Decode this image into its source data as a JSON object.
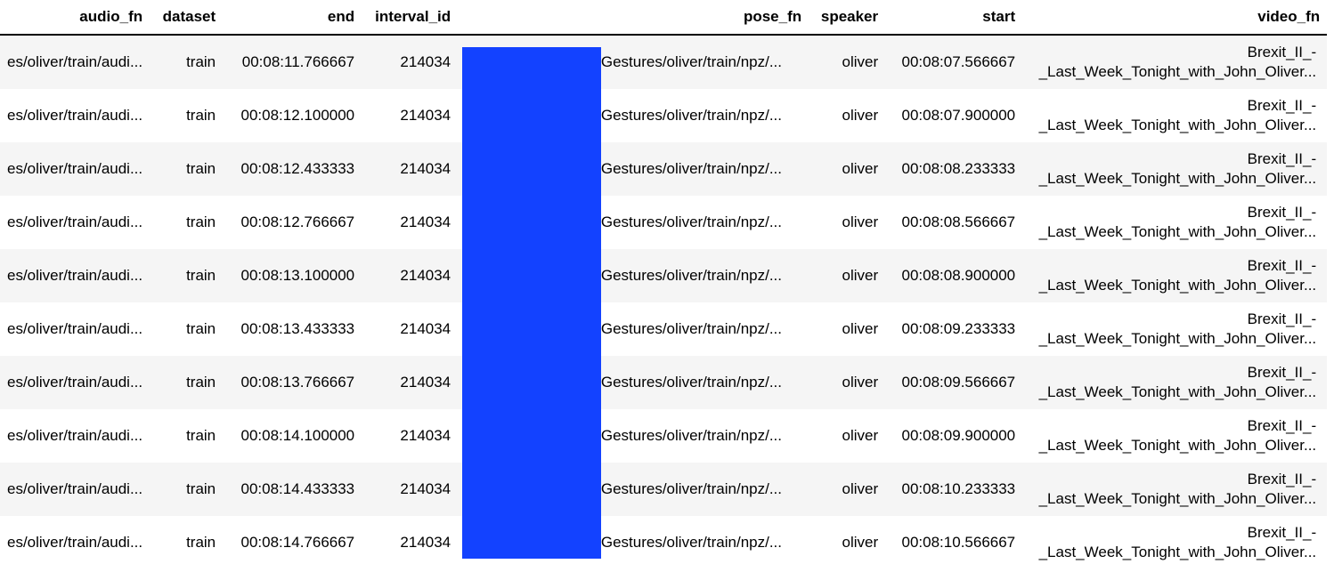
{
  "colors": {
    "redaction": "#1342ff",
    "row_stripe": "#f5f5f5",
    "row_plain": "#ffffff",
    "header_rule": "#000000"
  },
  "table": {
    "columns": [
      "audio_fn",
      "dataset",
      "end",
      "interval_id",
      "pose_fn",
      "speaker",
      "start",
      "video_fn"
    ],
    "rows": [
      {
        "audio_fn": "es/oliver/train/audi...",
        "dataset": "train",
        "end": "00:08:11.766667",
        "interval_id": "214034",
        "pose_fn": "/Gestures/oliver/train/npz/...",
        "speaker": "oliver",
        "start": "00:08:07.566667",
        "video_fn_line1": "Brexit_II_-",
        "video_fn_line2": "_Last_Week_Tonight_with_John_Oliver..."
      },
      {
        "audio_fn": "es/oliver/train/audi...",
        "dataset": "train",
        "end": "00:08:12.100000",
        "interval_id": "214034",
        "pose_fn": "/Gestures/oliver/train/npz/...",
        "speaker": "oliver",
        "start": "00:08:07.900000",
        "video_fn_line1": "Brexit_II_-",
        "video_fn_line2": "_Last_Week_Tonight_with_John_Oliver..."
      },
      {
        "audio_fn": "es/oliver/train/audi...",
        "dataset": "train",
        "end": "00:08:12.433333",
        "interval_id": "214034",
        "pose_fn": "/Gestures/oliver/train/npz/...",
        "speaker": "oliver",
        "start": "00:08:08.233333",
        "video_fn_line1": "Brexit_II_-",
        "video_fn_line2": "_Last_Week_Tonight_with_John_Oliver..."
      },
      {
        "audio_fn": "es/oliver/train/audi...",
        "dataset": "train",
        "end": "00:08:12.766667",
        "interval_id": "214034",
        "pose_fn": "/Gestures/oliver/train/npz/...",
        "speaker": "oliver",
        "start": "00:08:08.566667",
        "video_fn_line1": "Brexit_II_-",
        "video_fn_line2": "_Last_Week_Tonight_with_John_Oliver..."
      },
      {
        "audio_fn": "es/oliver/train/audi...",
        "dataset": "train",
        "end": "00:08:13.100000",
        "interval_id": "214034",
        "pose_fn": "/Gestures/oliver/train/npz/...",
        "speaker": "oliver",
        "start": "00:08:08.900000",
        "video_fn_line1": "Brexit_II_-",
        "video_fn_line2": "_Last_Week_Tonight_with_John_Oliver..."
      },
      {
        "audio_fn": "es/oliver/train/audi...",
        "dataset": "train",
        "end": "00:08:13.433333",
        "interval_id": "214034",
        "pose_fn": "/Gestures/oliver/train/npz/...",
        "speaker": "oliver",
        "start": "00:08:09.233333",
        "video_fn_line1": "Brexit_II_-",
        "video_fn_line2": "_Last_Week_Tonight_with_John_Oliver..."
      },
      {
        "audio_fn": "es/oliver/train/audi...",
        "dataset": "train",
        "end": "00:08:13.766667",
        "interval_id": "214034",
        "pose_fn": "/Gestures/oliver/train/npz/...",
        "speaker": "oliver",
        "start": "00:08:09.566667",
        "video_fn_line1": "Brexit_II_-",
        "video_fn_line2": "_Last_Week_Tonight_with_John_Oliver..."
      },
      {
        "audio_fn": "es/oliver/train/audi...",
        "dataset": "train",
        "end": "00:08:14.100000",
        "interval_id": "214034",
        "pose_fn": "/Gestures/oliver/train/npz/...",
        "speaker": "oliver",
        "start": "00:08:09.900000",
        "video_fn_line1": "Brexit_II_-",
        "video_fn_line2": "_Last_Week_Tonight_with_John_Oliver..."
      },
      {
        "audio_fn": "es/oliver/train/audi...",
        "dataset": "train",
        "end": "00:08:14.433333",
        "interval_id": "214034",
        "pose_fn": "/Gestures/oliver/train/npz/...",
        "speaker": "oliver",
        "start": "00:08:10.233333",
        "video_fn_line1": "Brexit_II_-",
        "video_fn_line2": "_Last_Week_Tonight_with_John_Oliver..."
      },
      {
        "audio_fn": "es/oliver/train/audi...",
        "dataset": "train",
        "end": "00:08:14.766667",
        "interval_id": "214034",
        "pose_fn": "/Gestures/oliver/train/npz/...",
        "speaker": "oliver",
        "start": "00:08:10.566667",
        "video_fn_line1": "Brexit_II_-",
        "video_fn_line2": "_Last_Week_Tonight_with_John_Oliver..."
      }
    ]
  }
}
